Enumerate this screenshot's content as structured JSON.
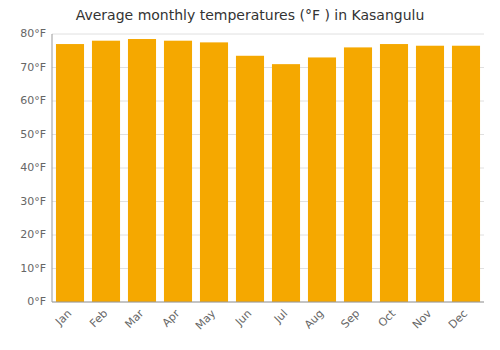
{
  "chart_data": {
    "type": "bar",
    "title": "Average monthly temperatures (°F ) in Kasangulu",
    "categories": [
      "Jan",
      "Feb",
      "Mar",
      "Apr",
      "May",
      "Jun",
      "Jul",
      "Aug",
      "Sep",
      "Oct",
      "Nov",
      "Dec"
    ],
    "values": [
      77,
      78,
      78.5,
      78,
      77.5,
      73.5,
      71,
      73,
      76,
      77,
      76.5,
      76.5
    ],
    "color": "#F5A800",
    "ylim": [
      0,
      80
    ],
    "yticks": [
      {
        "value": 0,
        "label": "0°F"
      },
      {
        "value": 10,
        "label": "10°F"
      },
      {
        "value": 20,
        "label": "20°F"
      },
      {
        "value": 30,
        "label": "30°F"
      },
      {
        "value": 40,
        "label": "40°F"
      },
      {
        "value": 50,
        "label": "50°F"
      },
      {
        "value": 60,
        "label": "60°F"
      },
      {
        "value": 70,
        "label": "70°F"
      },
      {
        "value": 80,
        "label": "80°F"
      }
    ],
    "grid": true
  }
}
